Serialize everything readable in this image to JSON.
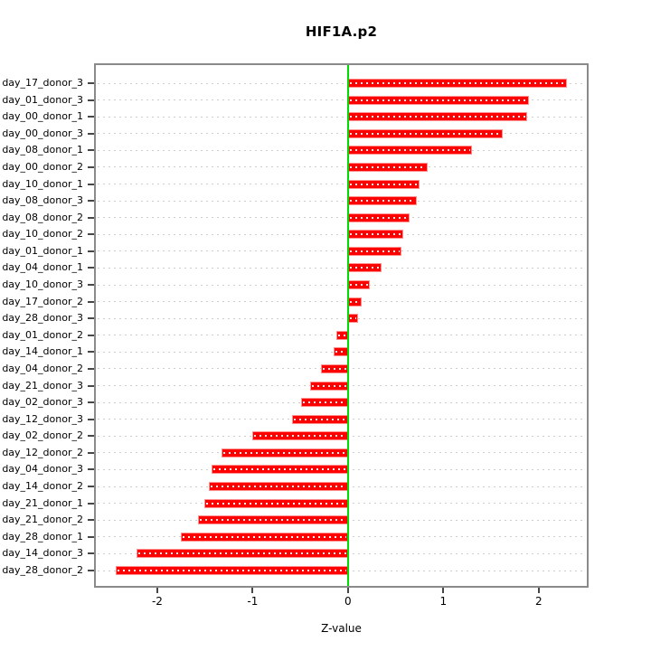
{
  "chart_data": {
    "type": "bar",
    "orientation": "horizontal",
    "title": "HIF1A.p2",
    "xlabel": "Z-value",
    "ylabel": "",
    "xlim": [
      -2.644,
      2.504
    ],
    "xticks": [
      -2,
      -1,
      0,
      1,
      2
    ],
    "grid": "dotted-horizontal",
    "legend": null,
    "zero_line": 0,
    "categories": [
      "day_17_donor_3",
      "day_01_donor_3",
      "day_00_donor_1",
      "day_00_donor_3",
      "day_08_donor_1",
      "day_00_donor_2",
      "day_10_donor_1",
      "day_08_donor_3",
      "day_08_donor_2",
      "day_10_donor_2",
      "day_01_donor_1",
      "day_04_donor_1",
      "day_10_donor_3",
      "day_17_donor_2",
      "day_28_donor_3",
      "day_01_donor_2",
      "day_14_donor_1",
      "day_04_donor_2",
      "day_21_donor_3",
      "day_02_donor_3",
      "day_12_donor_3",
      "day_02_donor_2",
      "day_12_donor_2",
      "day_04_donor_3",
      "day_14_donor_2",
      "day_21_donor_1",
      "day_21_donor_2",
      "day_28_donor_1",
      "day_14_donor_3",
      "day_28_donor_2"
    ],
    "values": [
      2.3,
      1.9,
      1.88,
      1.62,
      1.3,
      0.84,
      0.75,
      0.72,
      0.65,
      0.58,
      0.56,
      0.35,
      0.23,
      0.14,
      0.11,
      -0.12,
      -0.15,
      -0.28,
      -0.4,
      -0.49,
      -0.59,
      -1.0,
      -1.33,
      -1.43,
      -1.46,
      -1.51,
      -1.57,
      -1.75,
      -2.22,
      -2.44
    ],
    "colors": {
      "bar_fill": "#ff0000",
      "bar_border": "#ff9090",
      "bar_dot_overlay": "#ffffff",
      "zero_line": "#00dc00",
      "gridline": "#cdcdcd",
      "box_border": "#8a8a8a",
      "tick": "#474747",
      "text": "#000000"
    }
  }
}
